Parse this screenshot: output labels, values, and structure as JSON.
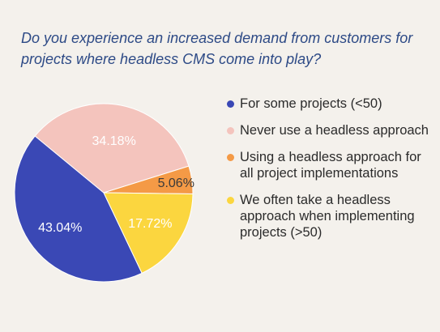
{
  "chart_data": {
    "type": "pie",
    "title": "Do you experience an increased demand from customers for projects where headless CMS come into play?",
    "slices": [
      {
        "label": "For some projects (<50)",
        "value": 43.04,
        "display": "43.04%",
        "color": "#3a48b5",
        "label_color": "#ffffff"
      },
      {
        "label": "Never use a headless approach",
        "value": 34.18,
        "display": "34.18%",
        "color": "#f4c4bd",
        "label_color": "#ffffff"
      },
      {
        "label": "Using a headless approach for all project implementations",
        "value": 5.06,
        "display": "5.06%",
        "color": "#f49a46",
        "label_color": "#3a3a3a"
      },
      {
        "label": "We often take a headless approach when implementing projects (>50)",
        "value": 17.72,
        "display": "17.72%",
        "color": "#fbd63f",
        "label_color": "#ffffff"
      }
    ],
    "legend_position": "right"
  }
}
